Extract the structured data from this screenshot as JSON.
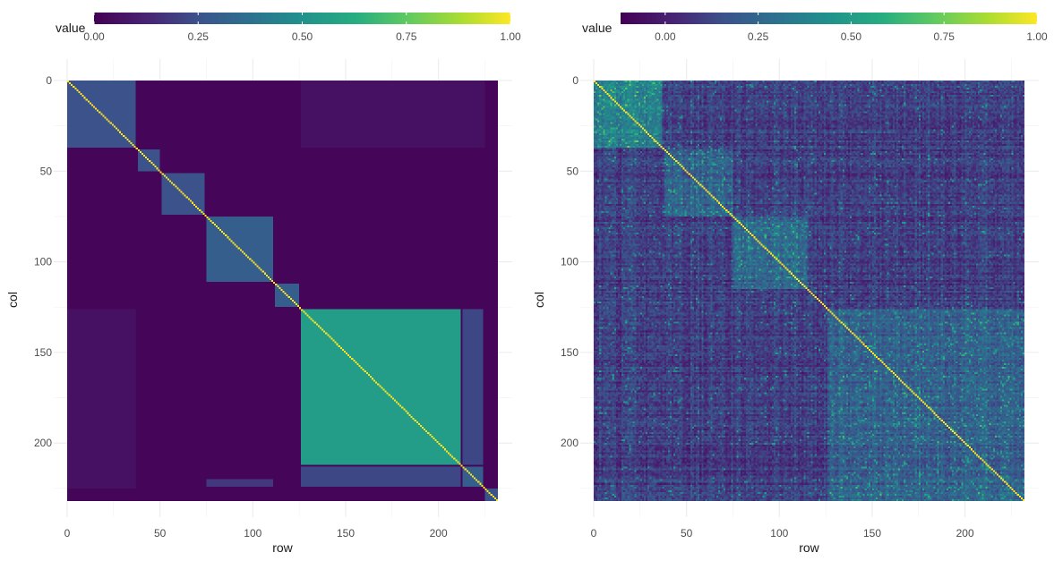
{
  "chart_data": [
    {
      "type": "heatmap",
      "xlabel": "row",
      "ylabel": "col",
      "x_ticks": [
        0,
        50,
        100,
        150,
        200
      ],
      "y_ticks": [
        0,
        50,
        100,
        150,
        200
      ],
      "xlim": [
        0,
        232
      ],
      "ylim": [
        0,
        232
      ],
      "y_reversed": true,
      "n": 232,
      "colormap": "viridis",
      "legend": {
        "title": "value",
        "position": "top",
        "min": 0,
        "max": 1,
        "ticks": [
          "0.00",
          "0.25",
          "0.50",
          "0.75",
          "1.00"
        ]
      },
      "diagonal_value": 1.0,
      "background_value": 0.02,
      "blocks": [
        {
          "x": [
            0,
            37
          ],
          "y": [
            0,
            37
          ],
          "value": 0.25
        },
        {
          "x": [
            38,
            50
          ],
          "y": [
            38,
            50
          ],
          "value": 0.25
        },
        {
          "x": [
            51,
            74
          ],
          "y": [
            51,
            74
          ],
          "value": 0.25
        },
        {
          "x": [
            75,
            111
          ],
          "y": [
            75,
            111
          ],
          "value": 0.3
        },
        {
          "x": [
            112,
            125
          ],
          "y": [
            112,
            125
          ],
          "value": 0.3
        },
        {
          "x": [
            126,
            212
          ],
          "y": [
            126,
            212
          ],
          "value": 0.55
        },
        {
          "x": [
            213,
            224
          ],
          "y": [
            213,
            224
          ],
          "value": 0.3
        },
        {
          "x": [
            225,
            232
          ],
          "y": [
            225,
            232
          ],
          "value": 0.25
        }
      ],
      "off_diagonal_bands": [
        {
          "x": [
            126,
            212
          ],
          "y": [
            213,
            224
          ],
          "value": 0.22
        },
        {
          "x": [
            213,
            224
          ],
          "y": [
            126,
            212
          ],
          "value": 0.22
        },
        {
          "x": [
            126,
            225
          ],
          "y": [
            0,
            37
          ],
          "value": 0.06
        },
        {
          "x": [
            0,
            37
          ],
          "y": [
            126,
            225
          ],
          "value": 0.06
        },
        {
          "x": [
            75,
            111
          ],
          "y": [
            220,
            224
          ],
          "value": 0.18
        }
      ]
    },
    {
      "type": "heatmap",
      "xlabel": "row",
      "ylabel": "col",
      "x_ticks": [
        0,
        50,
        100,
        150,
        200
      ],
      "y_ticks": [
        0,
        50,
        100,
        150,
        200
      ],
      "xlim": [
        0,
        232
      ],
      "ylim": [
        0,
        232
      ],
      "y_reversed": true,
      "n": 232,
      "colormap": "viridis",
      "legend": {
        "title": "value",
        "position": "top",
        "min": -0.12,
        "max": 1,
        "ticks": [
          "0.00",
          "0.25",
          "0.50",
          "0.75",
          "1.00"
        ]
      },
      "diagonal_value": 1.0,
      "background_value": 0.1,
      "noise": 0.08,
      "blocks": [
        {
          "x": [
            0,
            37
          ],
          "y": [
            0,
            37
          ],
          "value": 0.35
        },
        {
          "x": [
            38,
            75
          ],
          "y": [
            38,
            75
          ],
          "value": 0.22
        },
        {
          "x": [
            75,
            115
          ],
          "y": [
            75,
            115
          ],
          "value": 0.25
        },
        {
          "x": [
            126,
            232
          ],
          "y": [
            126,
            232
          ],
          "value": 0.22
        }
      ]
    }
  ]
}
